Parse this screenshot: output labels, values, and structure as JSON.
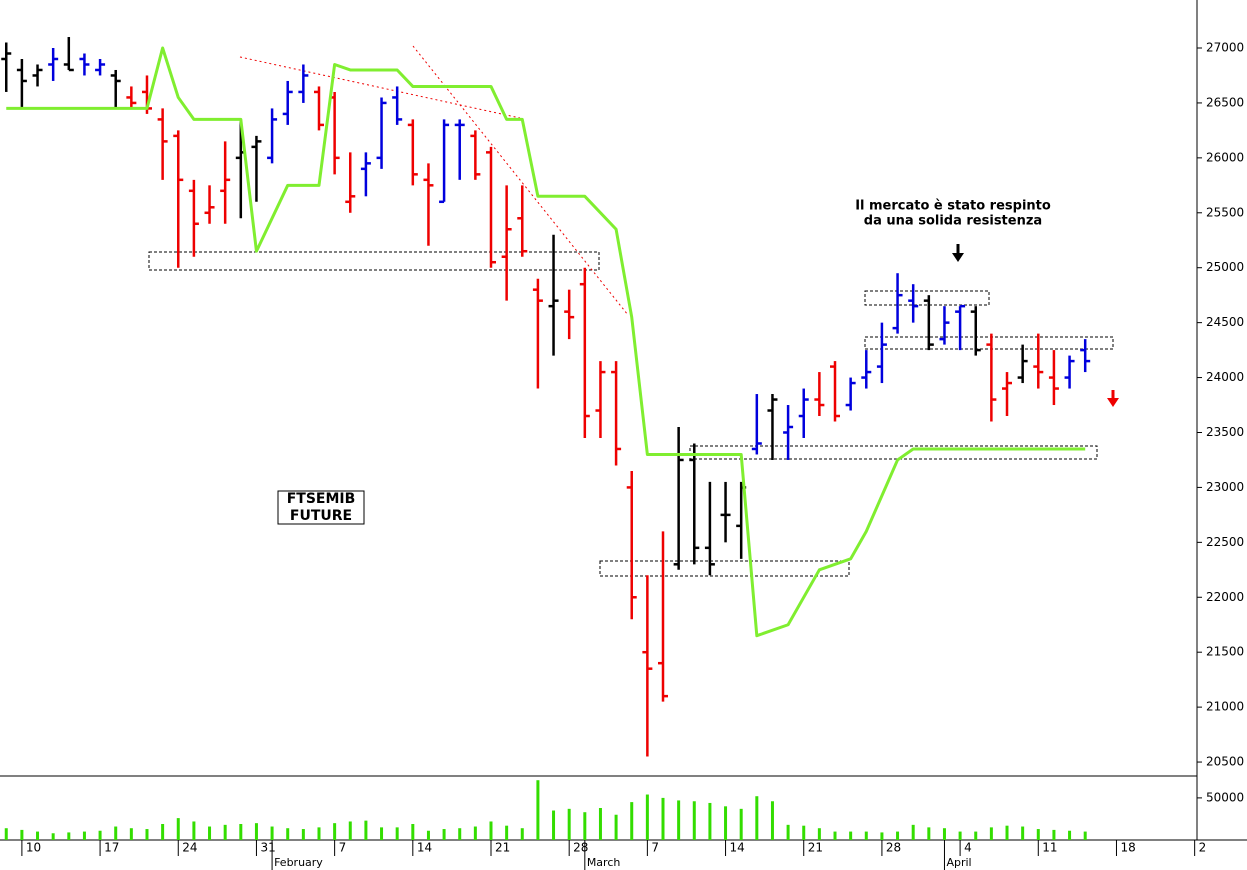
{
  "chart_data": [
    {
      "type": "ohlc",
      "label": [
        "FTSEMIB",
        "FUTURE"
      ],
      "annotation": [
        "Il mercato è stato respinto",
        "da una solida resistenza"
      ],
      "x": [
        0,
        1,
        2,
        3,
        4,
        5,
        6,
        7,
        8,
        9,
        10,
        11,
        12,
        13,
        14,
        15,
        16,
        17,
        18,
        19,
        20,
        21,
        22,
        23,
        24,
        25,
        26,
        27,
        28,
        29,
        30,
        31,
        32,
        33,
        34,
        35,
        36,
        37,
        38,
        39,
        40,
        41,
        42,
        43,
        44,
        45,
        46,
        47,
        48,
        49,
        50,
        51,
        52,
        53,
        54,
        55,
        56,
        57,
        58,
        59,
        60,
        61,
        62,
        63,
        64,
        65,
        66,
        67,
        68,
        69
      ],
      "open": [
        26900,
        26800,
        26750,
        26850,
        26850,
        26900,
        26800,
        26750,
        26550,
        26600,
        26350,
        26200,
        25700,
        25500,
        25700,
        26000,
        26100,
        26000,
        26400,
        26600,
        26600,
        26550,
        25600,
        25900,
        26000,
        26550,
        26300,
        25800,
        25600,
        26300,
        26200,
        26050,
        25100,
        25450,
        24800,
        24650,
        24600,
        24850,
        23700,
        24050,
        23000,
        21500,
        21400,
        22300,
        23250,
        22450,
        22750,
        22650,
        23350,
        23700,
        23500,
        23650,
        23800,
        24100,
        23750,
        24000,
        24100,
        24450,
        24700,
        24700,
        24350,
        24600,
        24600,
        24300,
        23900,
        24000,
        24100,
        24000,
        24000,
        24250
      ],
      "high": [
        27050,
        26900,
        26850,
        27000,
        27100,
        26950,
        26900,
        26800,
        26650,
        26750,
        26450,
        26250,
        25800,
        25750,
        26150,
        26350,
        26200,
        26450,
        26700,
        26850,
        26650,
        26600,
        26050,
        26050,
        26550,
        26650,
        26350,
        25950,
        26350,
        26350,
        26250,
        26100,
        25750,
        25750,
        24900,
        25300,
        24800,
        25000,
        24150,
        24150,
        23150,
        22200,
        22600,
        23550,
        23400,
        23050,
        23050,
        23050,
        23850,
        23850,
        23750,
        23900,
        24050,
        24150,
        24000,
        24250,
        24500,
        24950,
        24850,
        24750,
        24650,
        24650,
        24650,
        24400,
        24050,
        24300,
        24400,
        24250,
        24200,
        24350
      ],
      "low": [
        26600,
        26450,
        26650,
        26700,
        26800,
        26750,
        26750,
        26450,
        26450,
        26400,
        25800,
        25000,
        25100,
        25400,
        25400,
        25450,
        25600,
        25950,
        26300,
        26500,
        26250,
        25850,
        25500,
        25650,
        25900,
        26300,
        25750,
        25200,
        25600,
        25800,
        25800,
        25000,
        24700,
        25100,
        23900,
        24200,
        24350,
        23450,
        23450,
        23200,
        21800,
        20550,
        21050,
        22250,
        22300,
        22200,
        22500,
        22350,
        23300,
        23250,
        23250,
        23450,
        23650,
        23600,
        23700,
        23900,
        23950,
        24400,
        24500,
        24250,
        24300,
        24250,
        24200,
        23600,
        23650,
        23950,
        23900,
        23750,
        23900,
        24050
      ],
      "close": [
        26950,
        26700,
        26800,
        26900,
        26800,
        26850,
        26850,
        26700,
        26500,
        26450,
        26150,
        25800,
        25400,
        25550,
        25800,
        26050,
        26150,
        26350,
        26600,
        26750,
        26300,
        26000,
        25650,
        25950,
        26500,
        26350,
        25850,
        25750,
        26300,
        26300,
        25850,
        25050,
        25350,
        25150,
        24700,
        24700,
        24550,
        23650,
        24050,
        23350,
        22000,
        21350,
        21100,
        23250,
        22450,
        22300,
        22750,
        23000,
        23400,
        23800,
        23550,
        23800,
        23750,
        23650,
        23950,
        24050,
        24300,
        24750,
        24650,
        24300,
        24500,
        24650,
        24250,
        23800,
        23950,
        24150,
        24050,
        23900,
        24150,
        24150
      ],
      "colors": [
        "#000000",
        "#000000",
        "#000000",
        "#0000dd",
        "#000000",
        "#0000dd",
        "#0000dd",
        "#000000",
        "#ee0000",
        "#ee0000",
        "#ee0000",
        "#ee0000",
        "#ee0000",
        "#ee0000",
        "#ee0000",
        "#000000",
        "#000000",
        "#0000dd",
        "#0000dd",
        "#0000dd",
        "#ee0000",
        "#ee0000",
        "#ee0000",
        "#0000dd",
        "#0000dd",
        "#0000dd",
        "#ee0000",
        "#ee0000",
        "#0000dd",
        "#0000dd",
        "#ee0000",
        "#ee0000",
        "#ee0000",
        "#ee0000",
        "#ee0000",
        "#000000",
        "#ee0000",
        "#ee0000",
        "#ee0000",
        "#ee0000",
        "#ee0000",
        "#ee0000",
        "#ee0000",
        "#000000",
        "#000000",
        "#000000",
        "#000000",
        "#000000",
        "#0000dd",
        "#000000",
        "#0000dd",
        "#0000dd",
        "#ee0000",
        "#ee0000",
        "#0000dd",
        "#0000dd",
        "#0000dd",
        "#0000dd",
        "#0000dd",
        "#000000",
        "#0000dd",
        "#0000dd",
        "#000000",
        "#ee0000",
        "#ee0000",
        "#000000",
        "#ee0000",
        "#ee0000",
        "#0000dd",
        "#0000dd"
      ],
      "line": {
        "color": "#80ee30",
        "x": [
          0,
          9,
          10,
          11,
          12,
          15,
          16,
          18,
          20,
          21,
          22,
          25,
          26,
          31,
          32,
          33,
          34,
          37,
          39,
          40,
          41,
          47,
          48,
          50,
          52,
          54,
          55,
          57,
          58,
          69
        ],
        "values": [
          26450,
          26450,
          27000,
          26550,
          26350,
          26350,
          25150,
          25750,
          25750,
          26850,
          26800,
          26800,
          26650,
          26650,
          26350,
          26350,
          25650,
          25650,
          25350,
          24550,
          23300,
          23300,
          21650,
          21750,
          22250,
          22350,
          22600,
          23250,
          23350,
          23350
        ]
      },
      "xlim": [
        -0.4,
        76.15
      ],
      "xticks": [
        {
          "value": 1,
          "label": "10"
        },
        {
          "value": 6,
          "label": "17"
        },
        {
          "value": 11,
          "label": "24"
        },
        {
          "value": 16,
          "label": "31"
        },
        {
          "value": 21,
          "label": "7"
        },
        {
          "value": 26,
          "label": "14"
        },
        {
          "value": 31,
          "label": "21"
        },
        {
          "value": 36,
          "label": "28"
        },
        {
          "value": 41,
          "label": "7"
        },
        {
          "value": 46,
          "label": "14"
        },
        {
          "value": 51,
          "label": "21"
        },
        {
          "value": 56,
          "label": "28"
        },
        {
          "value": 61,
          "label": "4"
        },
        {
          "value": 66,
          "label": "11"
        },
        {
          "value": 71,
          "label": "18"
        },
        {
          "value": 76,
          "label": "2"
        }
      ],
      "month_labels": [
        {
          "value": 17,
          "label": "February"
        },
        {
          "value": 37,
          "label": "March"
        },
        {
          "value": 60,
          "label": "April"
        }
      ],
      "ylim": [
        20373,
        27437
      ],
      "yticks": [
        20500,
        21000,
        21500,
        22000,
        22500,
        23000,
        23500,
        24000,
        24500,
        25000,
        25500,
        26000,
        26500,
        27000
      ]
    },
    {
      "type": "bar",
      "x": [
        0,
        1,
        2,
        3,
        4,
        5,
        6,
        7,
        8,
        9,
        10,
        11,
        12,
        13,
        14,
        15,
        16,
        17,
        18,
        19,
        20,
        21,
        22,
        23,
        24,
        25,
        26,
        27,
        28,
        29,
        30,
        31,
        32,
        33,
        34,
        35,
        36,
        37,
        38,
        39,
        40,
        41,
        42,
        43,
        44,
        45,
        46,
        47,
        48,
        49,
        50,
        51,
        52,
        53,
        54,
        55,
        56,
        57,
        58,
        59,
        60,
        61,
        62,
        63,
        64,
        65,
        66,
        67,
        68,
        69
      ],
      "values": [
        14000,
        12000,
        10000,
        8000,
        9000,
        10000,
        11000,
        16000,
        14000,
        13000,
        19000,
        26000,
        22000,
        16000,
        18000,
        19000,
        20000,
        16000,
        14000,
        13000,
        15000,
        20000,
        22000,
        23000,
        15000,
        15000,
        19000,
        11000,
        13000,
        14000,
        16000,
        22000,
        17000,
        14000,
        71000,
        35000,
        37000,
        33000,
        38000,
        30000,
        45000,
        54000,
        50000,
        47000,
        46000,
        44000,
        40000,
        37000,
        52000,
        46000,
        18000,
        17000,
        14000,
        10000,
        10000,
        10000,
        9000,
        10000,
        18000,
        15000,
        14000,
        10000,
        10000,
        15000,
        17000,
        16000,
        13000,
        12000,
        11000,
        10000
      ],
      "color": "#33dd00",
      "ylim": [
        0,
        76000
      ],
      "yticks": [
        50000
      ]
    }
  ]
}
